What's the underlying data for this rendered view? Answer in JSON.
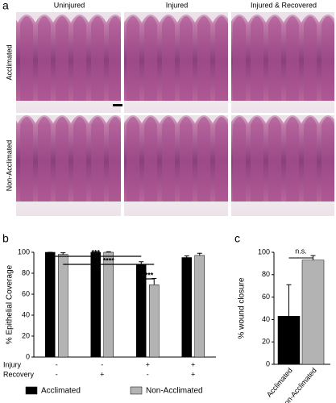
{
  "panel_a": {
    "panel_label": "a",
    "columns": [
      "Uninjured",
      "Injured",
      "Injured & Recovered"
    ],
    "rows": [
      "Acclimated",
      "Non-Acclimated"
    ]
  },
  "chart_data": [
    {
      "type": "bar",
      "panel_label": "b",
      "y_label": "% Epithelial Coverage",
      "categories": [
        null,
        null,
        null,
        null
      ],
      "row_labels": [
        "Injury",
        "Recovery"
      ],
      "conditions": [
        [
          "-",
          "-"
        ],
        [
          "-",
          "+"
        ],
        [
          "+",
          "-"
        ],
        [
          "+",
          "+"
        ]
      ],
      "series": [
        {
          "name": "Acclimated",
          "color": "#000000",
          "values": [
            100,
            100,
            88,
            95
          ],
          "error": [
            0,
            0,
            3,
            1.5
          ]
        },
        {
          "name": "Non-Acclimated",
          "color": "#b3b3b3",
          "values": [
            98,
            100,
            69,
            97
          ],
          "error": [
            1.5,
            0.5,
            6,
            2
          ]
        }
      ],
      "annotations": [
        "***",
        "****",
        "****"
      ],
      "ylim": [
        0,
        100
      ],
      "yticks": [
        0,
        20,
        40,
        60,
        80,
        100
      ],
      "legend": "bottom"
    },
    {
      "type": "bar",
      "panel_label": "c",
      "y_label": "% wound closure",
      "categories": [
        "Acclimated",
        "Non-Acclimated"
      ],
      "values": [
        43,
        93
      ],
      "error": [
        28,
        4
      ],
      "colors": [
        "#000000",
        "#b3b3b3"
      ],
      "annotations": [
        "n.s."
      ],
      "ylim": [
        0,
        100
      ],
      "yticks": [
        0,
        20,
        40,
        60,
        80,
        100
      ]
    }
  ]
}
